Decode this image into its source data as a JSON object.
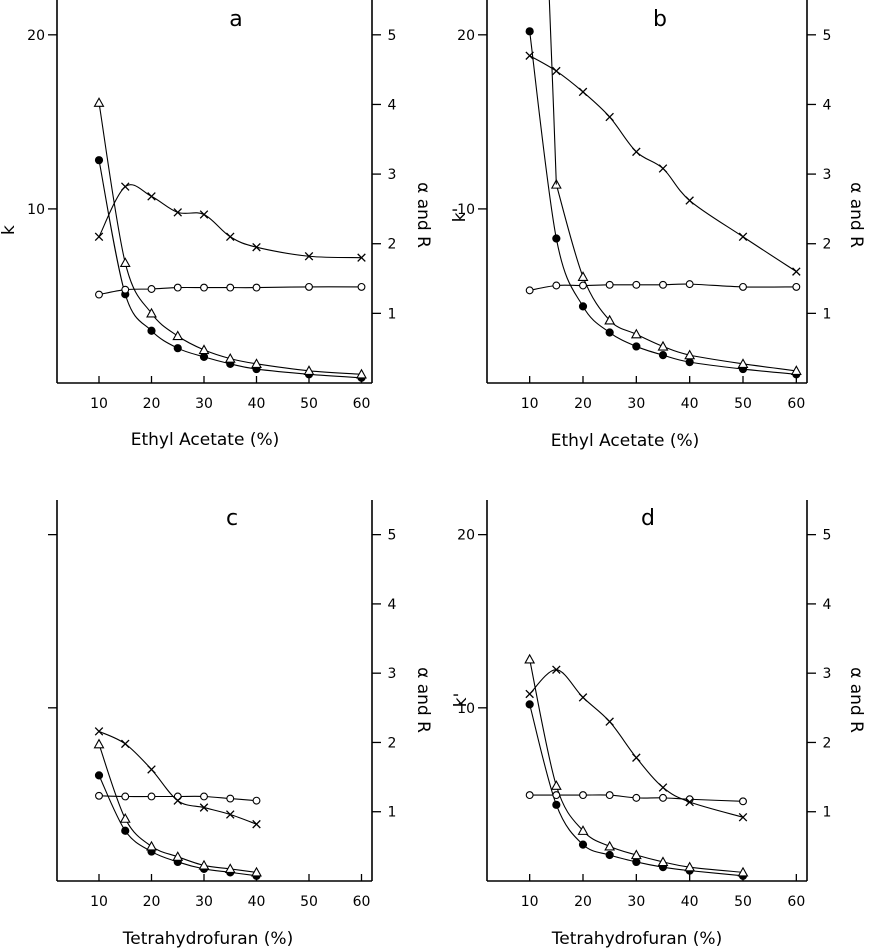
{
  "chart_data": [
    {
      "panel": "a",
      "type": "line",
      "xlabel": "Ethyl Acetate (%)",
      "ylabel_left": "k",
      "ylabel_right": "α and R",
      "left_ticks": [
        {
          "v": 10,
          "label": "10"
        },
        {
          "v": 20,
          "label": "20"
        }
      ],
      "right_ticks": [
        {
          "v": 1,
          "label": "1"
        },
        {
          "v": 2,
          "label": "2"
        },
        {
          "v": 3,
          "label": "3"
        },
        {
          "v": 4,
          "label": "4"
        },
        {
          "v": 5,
          "label": "5"
        }
      ],
      "x_ticks": [
        {
          "v": 10,
          "label": "10"
        },
        {
          "v": 20,
          "label": "20"
        },
        {
          "v": 30,
          "label": "30"
        },
        {
          "v": 40,
          "label": "40"
        },
        {
          "v": 50,
          "label": "50"
        },
        {
          "v": 60,
          "label": "60"
        }
      ],
      "xlim": [
        2,
        62
      ],
      "ylim_left": [
        0,
        22
      ],
      "ylim_right": [
        0,
        5.5
      ],
      "series": [
        {
          "marker": "filled-circle",
          "axis": "left",
          "x": [
            10,
            15,
            20,
            25,
            30,
            35,
            40,
            50,
            60
          ],
          "y": [
            12.8,
            5.1,
            3.0,
            2.0,
            1.5,
            1.1,
            0.8,
            0.5,
            0.3
          ]
        },
        {
          "marker": "triangle",
          "axis": "left",
          "x": [
            10,
            15,
            20,
            25,
            30,
            35,
            40,
            50,
            60
          ],
          "y": [
            16.1,
            6.9,
            4.0,
            2.7,
            1.9,
            1.4,
            1.1,
            0.7,
            0.5
          ]
        },
        {
          "marker": "open-circle",
          "axis": "right",
          "x": [
            10,
            15,
            20,
            25,
            30,
            35,
            40,
            50,
            60
          ],
          "y": [
            1.27,
            1.34,
            1.35,
            1.37,
            1.37,
            1.37,
            1.37,
            1.38,
            1.38
          ]
        },
        {
          "marker": "cross",
          "axis": "right",
          "x": [
            10,
            15,
            20,
            25,
            30,
            35,
            40,
            50,
            60
          ],
          "y": [
            2.1,
            2.82,
            2.68,
            2.45,
            2.42,
            2.1,
            1.95,
            1.82,
            1.8
          ]
        }
      ]
    },
    {
      "panel": "b",
      "type": "line",
      "xlabel": "Ethyl Acetate (%)",
      "ylabel_left": "k'",
      "ylabel_right": "α and R",
      "left_ticks": [
        {
          "v": 10,
          "label": "10"
        },
        {
          "v": 20,
          "label": "20"
        }
      ],
      "right_ticks": [
        {
          "v": 1,
          "label": "1"
        },
        {
          "v": 2,
          "label": "2"
        },
        {
          "v": 3,
          "label": "3"
        },
        {
          "v": 4,
          "label": "4"
        },
        {
          "v": 5,
          "label": "5"
        }
      ],
      "x_ticks": [
        {
          "v": 10,
          "label": "10"
        },
        {
          "v": 20,
          "label": "20"
        },
        {
          "v": 30,
          "label": "30"
        },
        {
          "v": 40,
          "label": "40"
        },
        {
          "v": 50,
          "label": "50"
        },
        {
          "v": 60,
          "label": "60"
        }
      ],
      "xlim": [
        2,
        62
      ],
      "ylim_left": [
        0,
        22
      ],
      "ylim_right": [
        0,
        5.5
      ],
      "series": [
        {
          "marker": "filled-circle",
          "axis": "left",
          "x": [
            10,
            15,
            20,
            25,
            30,
            35,
            40,
            50,
            60
          ],
          "y": [
            20.2,
            8.3,
            4.4,
            2.9,
            2.1,
            1.6,
            1.2,
            0.8,
            0.5
          ]
        },
        {
          "marker": "triangle",
          "axis": "left",
          "x": [
            15,
            20,
            25,
            30,
            35,
            40,
            50,
            60
          ],
          "y": [
            11.4,
            6.1,
            3.6,
            2.8,
            2.1,
            1.6,
            1.1,
            0.7
          ]
        },
        {
          "marker": "open-circle",
          "axis": "right",
          "x": [
            10,
            15,
            20,
            25,
            30,
            35,
            40,
            50,
            60
          ],
          "y": [
            1.33,
            1.4,
            1.4,
            1.41,
            1.41,
            1.41,
            1.42,
            1.38,
            1.38
          ]
        },
        {
          "marker": "cross",
          "axis": "right",
          "x": [
            10,
            15,
            20,
            25,
            30,
            35,
            40,
            50,
            60
          ],
          "y": [
            4.7,
            4.48,
            4.18,
            3.82,
            3.32,
            3.08,
            2.62,
            2.1,
            1.6
          ]
        }
      ]
    },
    {
      "panel": "c",
      "type": "line",
      "xlabel": "Tetrahydrofuran (%)",
      "ylabel_left": "",
      "ylabel_right": "α and R",
      "left_ticks": [
        {
          "v": 10,
          "label": ""
        },
        {
          "v": 20,
          "label": ""
        }
      ],
      "right_ticks": [
        {
          "v": 1,
          "label": "1"
        },
        {
          "v": 2,
          "label": "2"
        },
        {
          "v": 3,
          "label": "3"
        },
        {
          "v": 4,
          "label": "4"
        },
        {
          "v": 5,
          "label": "5"
        }
      ],
      "x_ticks": [
        {
          "v": 10,
          "label": "10"
        },
        {
          "v": 20,
          "label": "20"
        },
        {
          "v": 30,
          "label": "30"
        },
        {
          "v": 40,
          "label": "40"
        },
        {
          "v": 50,
          "label": "50"
        },
        {
          "v": 60,
          "label": "60"
        }
      ],
      "xlim": [
        2,
        62
      ],
      "ylim_left": [
        0,
        22
      ],
      "ylim_right": [
        0,
        5.5
      ],
      "series": [
        {
          "marker": "filled-circle",
          "axis": "left",
          "x": [
            10,
            15,
            20,
            25,
            30,
            35,
            40
          ],
          "y": [
            6.1,
            2.9,
            1.7,
            1.1,
            0.7,
            0.5,
            0.3
          ]
        },
        {
          "marker": "triangle",
          "axis": "left",
          "x": [
            10,
            15,
            20,
            25,
            30,
            35,
            40
          ],
          "y": [
            7.9,
            3.6,
            2.0,
            1.4,
            0.9,
            0.7,
            0.5
          ]
        },
        {
          "marker": "open-circle",
          "axis": "right",
          "x": [
            10,
            15,
            20,
            25,
            30,
            35,
            40
          ],
          "y": [
            1.23,
            1.22,
            1.22,
            1.22,
            1.22,
            1.19,
            1.16
          ]
        },
        {
          "marker": "cross",
          "axis": "right",
          "x": [
            10,
            15,
            20,
            25,
            30,
            35,
            40
          ],
          "y": [
            2.16,
            1.98,
            1.61,
            1.16,
            1.06,
            0.96,
            0.82
          ]
        }
      ]
    },
    {
      "panel": "d",
      "type": "line",
      "xlabel": "Tetrahydrofuran (%)",
      "ylabel_left": "k'",
      "ylabel_right": "α and R",
      "left_ticks": [
        {
          "v": 10,
          "label": "10"
        },
        {
          "v": 20,
          "label": "20"
        }
      ],
      "right_ticks": [
        {
          "v": 1,
          "label": "1"
        },
        {
          "v": 2,
          "label": "2"
        },
        {
          "v": 3,
          "label": "3"
        },
        {
          "v": 4,
          "label": "4"
        },
        {
          "v": 5,
          "label": "5"
        }
      ],
      "x_ticks": [
        {
          "v": 10,
          "label": "10"
        },
        {
          "v": 20,
          "label": "20"
        },
        {
          "v": 30,
          "label": "30"
        },
        {
          "v": 40,
          "label": "40"
        },
        {
          "v": 50,
          "label": "50"
        },
        {
          "v": 60,
          "label": "60"
        }
      ],
      "xlim": [
        2,
        62
      ],
      "ylim_left": [
        0,
        22
      ],
      "ylim_right": [
        0,
        5.5
      ],
      "series": [
        {
          "marker": "filled-circle",
          "axis": "left",
          "x": [
            10,
            15,
            20,
            25,
            30,
            35,
            40,
            50
          ],
          "y": [
            10.2,
            4.4,
            2.1,
            1.5,
            1.1,
            0.8,
            0.6,
            0.3
          ]
        },
        {
          "marker": "triangle",
          "axis": "left",
          "x": [
            10,
            15,
            20,
            25,
            30,
            35,
            40,
            50
          ],
          "y": [
            12.8,
            5.5,
            2.9,
            2.0,
            1.5,
            1.1,
            0.8,
            0.5
          ]
        },
        {
          "marker": "open-circle",
          "axis": "right",
          "x": [
            10,
            15,
            20,
            25,
            30,
            35,
            40,
            50
          ],
          "y": [
            1.24,
            1.24,
            1.24,
            1.24,
            1.2,
            1.2,
            1.18,
            1.15
          ]
        },
        {
          "marker": "cross",
          "axis": "right",
          "x": [
            10,
            15,
            20,
            25,
            30,
            35,
            40,
            50
          ],
          "y": [
            2.7,
            3.05,
            2.65,
            2.3,
            1.78,
            1.35,
            1.14,
            0.92
          ]
        }
      ]
    }
  ]
}
